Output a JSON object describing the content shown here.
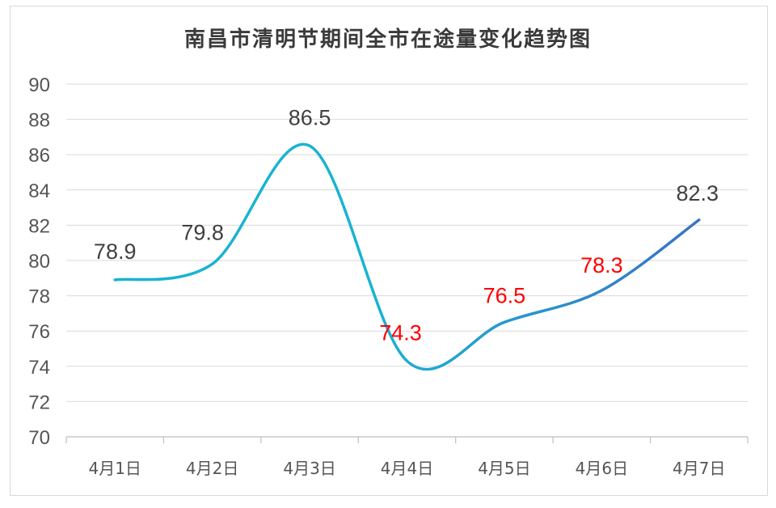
{
  "chart_data": {
    "type": "line",
    "title": "南昌市清明节期间全市在途量变化趋势图",
    "categories": [
      "4月1日",
      "4月2日",
      "4月3日",
      "4月4日",
      "4月5日",
      "4月6日",
      "4月7日"
    ],
    "series": [
      {
        "values": [
          78.9,
          79.8,
          86.5,
          74.3,
          76.5,
          78.3,
          82.3
        ]
      }
    ],
    "data_label_colors": [
      "#404040",
      "#404040",
      "#404040",
      "#ff0000",
      "#ff0000",
      "#ff0000",
      "#404040"
    ],
    "line_colors": [
      "#1ab3d1",
      "#3a72c8"
    ],
    "smooth": true,
    "ylim": [
      70,
      90
    ],
    "yticks": [
      70,
      72,
      74,
      76,
      78,
      80,
      82,
      84,
      86,
      88,
      90
    ],
    "grid": true,
    "legend": "none",
    "xlabel": "",
    "ylabel": ""
  }
}
